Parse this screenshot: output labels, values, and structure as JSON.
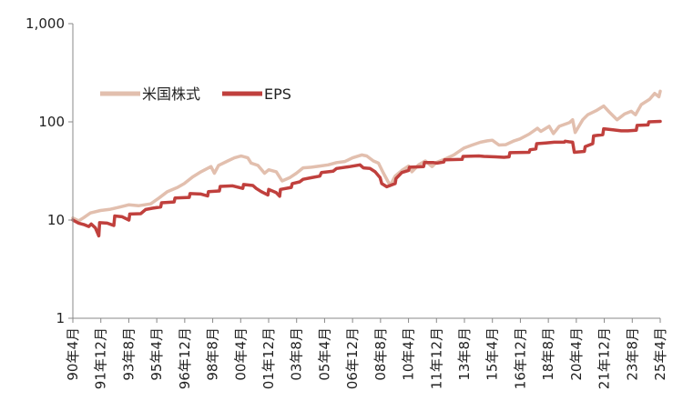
{
  "chart_data": {
    "type": "line",
    "y_scale": "log",
    "ylim": [
      1,
      1000
    ],
    "y_ticks": [
      "1",
      "10",
      "100",
      "1,000"
    ],
    "x_ticks": [
      "90年4月",
      "91年12月",
      "93年8月",
      "95年4月",
      "96年12月",
      "98年8月",
      "00年4月",
      "01年12月",
      "03年8月",
      "05年4月",
      "06年12月",
      "08年8月",
      "10年4月",
      "11年12月",
      "13年8月",
      "15年4月",
      "16年12月",
      "18年8月",
      "20年4月",
      "21年12月",
      "23年8月",
      "25年4月"
    ],
    "x_range": [
      1990.25,
      2025.33
    ],
    "grid": false,
    "legend_position": "upper-left",
    "series": [
      {
        "name": "米国株式",
        "color": "#e2bfae",
        "points": [
          [
            1990.25,
            10.5
          ],
          [
            1990.6,
            9.8
          ],
          [
            1990.9,
            10.6
          ],
          [
            1991.3,
            11.8
          ],
          [
            1991.9,
            12.5
          ],
          [
            1992.5,
            12.9
          ],
          [
            1993.0,
            13.5
          ],
          [
            1993.6,
            14.3
          ],
          [
            1994.2,
            14.0
          ],
          [
            1994.9,
            14.6
          ],
          [
            1995.4,
            16.8
          ],
          [
            1995.9,
            19.5
          ],
          [
            1996.5,
            21.5
          ],
          [
            1996.9,
            23.5
          ],
          [
            1997.4,
            27.5
          ],
          [
            1997.9,
            31.0
          ],
          [
            1998.5,
            35.0
          ],
          [
            1998.7,
            30.0
          ],
          [
            1998.95,
            36.0
          ],
          [
            1999.5,
            40.0
          ],
          [
            1999.9,
            43.0
          ],
          [
            2000.3,
            45.0
          ],
          [
            2000.7,
            43.0
          ],
          [
            2000.9,
            38.0
          ],
          [
            2001.3,
            36.0
          ],
          [
            2001.7,
            30.0
          ],
          [
            2001.95,
            32.5
          ],
          [
            2002.4,
            31.0
          ],
          [
            2002.75,
            25.0
          ],
          [
            2003.2,
            27.0
          ],
          [
            2003.6,
            30.0
          ],
          [
            2004.0,
            34.0
          ],
          [
            2004.5,
            34.5
          ],
          [
            2005.0,
            35.5
          ],
          [
            2005.5,
            36.5
          ],
          [
            2006.0,
            38.5
          ],
          [
            2006.5,
            39.5
          ],
          [
            2006.95,
            43.0
          ],
          [
            2007.5,
            46.0
          ],
          [
            2007.8,
            45.0
          ],
          [
            2008.2,
            40.0
          ],
          [
            2008.5,
            38.0
          ],
          [
            2008.8,
            30.0
          ],
          [
            2009.2,
            22.5
          ],
          [
            2009.5,
            28.0
          ],
          [
            2009.9,
            32.0
          ],
          [
            2010.3,
            35.5
          ],
          [
            2010.5,
            31.0
          ],
          [
            2010.9,
            36.5
          ],
          [
            2011.3,
            40.0
          ],
          [
            2011.7,
            35.0
          ],
          [
            2011.95,
            38.5
          ],
          [
            2012.5,
            42.0
          ],
          [
            2013.0,
            46.0
          ],
          [
            2013.6,
            54.0
          ],
          [
            2014.1,
            58.0
          ],
          [
            2014.6,
            62.0
          ],
          [
            2015.0,
            64.0
          ],
          [
            2015.3,
            65.0
          ],
          [
            2015.7,
            58.0
          ],
          [
            2016.1,
            58.5
          ],
          [
            2016.6,
            64.0
          ],
          [
            2016.95,
            67.0
          ],
          [
            2017.5,
            75.0
          ],
          [
            2018.0,
            86.0
          ],
          [
            2018.2,
            80.0
          ],
          [
            2018.7,
            90.0
          ],
          [
            2018.95,
            76.0
          ],
          [
            2019.3,
            90.0
          ],
          [
            2019.9,
            98.0
          ],
          [
            2020.1,
            105.0
          ],
          [
            2020.25,
            78.0
          ],
          [
            2020.7,
            105.0
          ],
          [
            2021.0,
            118.0
          ],
          [
            2021.5,
            130.0
          ],
          [
            2021.95,
            145.0
          ],
          [
            2022.3,
            125.0
          ],
          [
            2022.75,
            105.0
          ],
          [
            2023.2,
            120.0
          ],
          [
            2023.6,
            128.0
          ],
          [
            2023.85,
            118.0
          ],
          [
            2024.2,
            150.0
          ],
          [
            2024.7,
            170.0
          ],
          [
            2025.0,
            195.0
          ],
          [
            2025.25,
            180.0
          ],
          [
            2025.33,
            205.0
          ]
        ]
      },
      {
        "name": "EPS",
        "color": "#c0403d",
        "points": [
          [
            1990.25,
            10.0
          ],
          [
            1990.6,
            9.3
          ],
          [
            1990.9,
            9.0
          ],
          [
            1991.2,
            8.6
          ],
          [
            1991.35,
            9.1
          ],
          [
            1991.6,
            8.3
          ],
          [
            1991.8,
            6.9
          ],
          [
            1991.85,
            9.4
          ],
          [
            1992.3,
            9.3
          ],
          [
            1992.7,
            8.8
          ],
          [
            1992.75,
            11.0
          ],
          [
            1993.2,
            10.8
          ],
          [
            1993.6,
            10.0
          ],
          [
            1993.65,
            11.5
          ],
          [
            1994.3,
            11.6
          ],
          [
            1994.6,
            12.8
          ],
          [
            1995.0,
            13.2
          ],
          [
            1995.5,
            13.6
          ],
          [
            1995.55,
            15.0
          ],
          [
            1996.3,
            15.3
          ],
          [
            1996.35,
            16.8
          ],
          [
            1997.2,
            17.0
          ],
          [
            1997.25,
            18.6
          ],
          [
            1997.9,
            18.4
          ],
          [
            1998.3,
            17.6
          ],
          [
            1998.35,
            19.5
          ],
          [
            1999.0,
            19.8
          ],
          [
            1999.05,
            22.0
          ],
          [
            1999.8,
            22.3
          ],
          [
            2000.4,
            21.0
          ],
          [
            2000.45,
            23.0
          ],
          [
            2001.0,
            22.5
          ],
          [
            2001.2,
            21.0
          ],
          [
            2001.5,
            19.5
          ],
          [
            2001.9,
            18.0
          ],
          [
            2001.95,
            20.5
          ],
          [
            2002.4,
            19.0
          ],
          [
            2002.6,
            17.5
          ],
          [
            2002.65,
            20.5
          ],
          [
            2003.3,
            21.5
          ],
          [
            2003.35,
            23.5
          ],
          [
            2003.8,
            24.5
          ],
          [
            2004.0,
            26.0
          ],
          [
            2004.5,
            27.0
          ],
          [
            2005.0,
            28.0
          ],
          [
            2005.1,
            30.5
          ],
          [
            2005.8,
            31.5
          ],
          [
            2006.0,
            33.5
          ],
          [
            2006.8,
            35.0
          ],
          [
            2007.4,
            36.5
          ],
          [
            2007.6,
            34.0
          ],
          [
            2008.0,
            33.5
          ],
          [
            2008.3,
            31.0
          ],
          [
            2008.6,
            27.0
          ],
          [
            2008.7,
            23.5
          ],
          [
            2009.0,
            21.8
          ],
          [
            2009.5,
            23.5
          ],
          [
            2009.55,
            26.5
          ],
          [
            2009.9,
            30.5
          ],
          [
            2010.3,
            32.0
          ],
          [
            2010.35,
            34.5
          ],
          [
            2011.2,
            35.0
          ],
          [
            2011.25,
            38.5
          ],
          [
            2011.8,
            38.5
          ],
          [
            2012.0,
            38.0
          ],
          [
            2012.4,
            39.0
          ],
          [
            2012.45,
            41.0
          ],
          [
            2013.5,
            41.5
          ],
          [
            2013.55,
            44.5
          ],
          [
            2014.5,
            45.0
          ],
          [
            2014.8,
            44.5
          ],
          [
            2015.5,
            44.0
          ],
          [
            2016.0,
            43.5
          ],
          [
            2016.3,
            44.0
          ],
          [
            2016.35,
            48.5
          ],
          [
            2017.5,
            49.0
          ],
          [
            2017.55,
            52.0
          ],
          [
            2017.9,
            53.0
          ],
          [
            2017.95,
            60.0
          ],
          [
            2018.5,
            61.0
          ],
          [
            2019.0,
            62.0
          ],
          [
            2019.6,
            62.0
          ],
          [
            2019.65,
            63.5
          ],
          [
            2019.9,
            62.5
          ],
          [
            2020.1,
            62.0
          ],
          [
            2020.2,
            49.0
          ],
          [
            2020.8,
            50.0
          ],
          [
            2020.85,
            56.0
          ],
          [
            2021.3,
            60.0
          ],
          [
            2021.35,
            72.0
          ],
          [
            2021.9,
            74.0
          ],
          [
            2021.95,
            85.0
          ],
          [
            2022.5,
            83.0
          ],
          [
            2023.0,
            81.0
          ],
          [
            2023.4,
            81.0
          ],
          [
            2023.9,
            82.0
          ],
          [
            2023.95,
            92.0
          ],
          [
            2024.6,
            93.0
          ],
          [
            2024.65,
            100.0
          ],
          [
            2025.33,
            101.0
          ]
        ]
      }
    ]
  }
}
